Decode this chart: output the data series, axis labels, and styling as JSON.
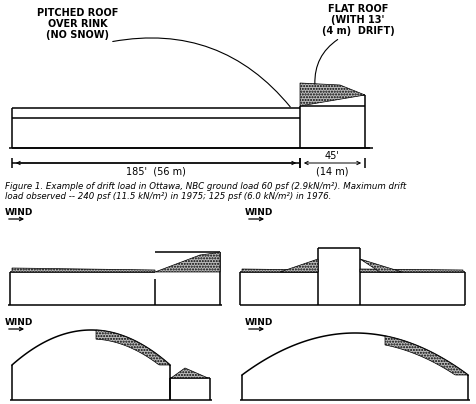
{
  "bg_color": "#ffffff",
  "line_color": "#000000",
  "fig_width": 4.77,
  "fig_height": 4.04,
  "dpi": 100,
  "caption_line1": "Figure 1. Example of drift load in Ottawa, NBC ground load 60 psf (2.9kN/m²). Maximum drift",
  "caption_line2": "load observed -- 240 psf (11.5 kN/m²) in 1975; 125 psf (6.0 kN/m²) in 1976.",
  "label_pitched_1": "PITCHED ROOF",
  "label_pitched_2": "OVER RINK",
  "label_pitched_3": "(NO SNOW)",
  "label_flat_1": "FLAT ROOF",
  "label_flat_2": "(WITH 13'",
  "label_flat_3": "(4 m)  DRIFT)",
  "dim_185": "185'  (56 m)",
  "dim_45": "45'",
  "dim_14": "(14 m)"
}
